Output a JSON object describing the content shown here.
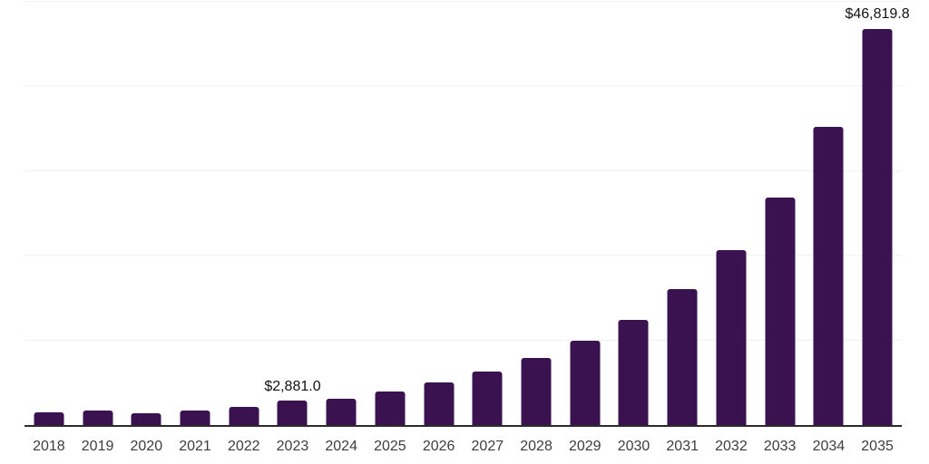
{
  "chart_data": {
    "type": "bar",
    "title": "",
    "xlabel": "",
    "ylabel": "",
    "categories": [
      "2018",
      "2019",
      "2020",
      "2021",
      "2022",
      "2023",
      "2024",
      "2025",
      "2026",
      "2027",
      "2028",
      "2029",
      "2030",
      "2031",
      "2032",
      "2033",
      "2034",
      "2035"
    ],
    "values": [
      1500,
      1720,
      1400,
      1720,
      2140,
      2881.0,
      3150,
      3960,
      5030,
      6310,
      7900,
      9950,
      12400,
      16040,
      20640,
      26840,
      35190,
      46819.8
    ],
    "point_labels": {
      "2023": "$2,881.0",
      "2035": "$46,819.8"
    },
    "ylim": [
      0,
      50000
    ],
    "gridline_step": 10000,
    "grid": true,
    "legend": false,
    "colors": {
      "bar": "#3a1250",
      "axis_line": "#2b2b2b",
      "gridline": "#f1f1f3",
      "tick_label": "#3d3d3d",
      "data_label": "#121212",
      "background": "#ffffff"
    }
  }
}
